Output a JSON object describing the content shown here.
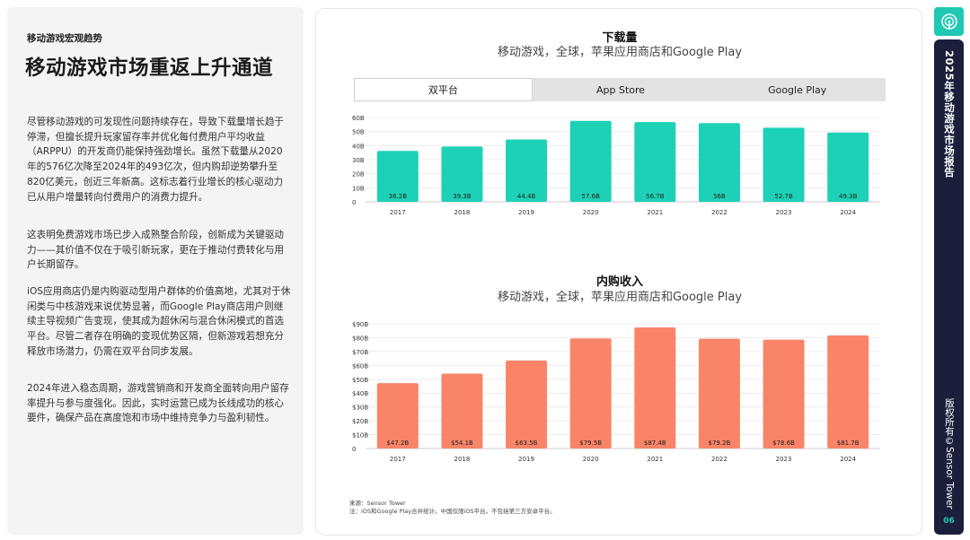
{
  "left": {
    "eyebrow": "移动游戏宏观趋势",
    "headline": "移动游戏市场重返上升通道",
    "paragraphs": [
      "尽管移动游戏的可发现性问题持续存在，导致下载量增长趋于停滞，但擅长提升玩家留存率并优化每付费用户平均收益（ARPPU）的开发商仍能保持强劲增长。虽然下载量从2020年的576亿次降至2024年的493亿次，但内购却逆势攀升至820亿美元，创近三年新高。这标志着行业增长的核心驱动力已从用户增量转向付费用户的消费力提升。",
      "这表明免费游戏市场已步入成熟整合阶段，创新成为关键驱动力——其价值不仅在于吸引新玩家，更在于推动付费转化与用户长期留存。",
      "iOS应用商店仍是内购驱动型用户群体的价值高地，尤其对于休闲类与中核游戏来说优势显著，而Google Play商店用户则继续主导视频广告变现，使其成为超休闲与混合休闲模式的首选平台。尽管二者存在明确的变现优势区隔，但新游戏若想充分释放市场潜力，仍需在双平台同步发展。",
      "2024年进入稳态周期，游戏营销商和开发商全面转向用户留存率提升与参与度强化。因此，实时运营已成为长线成功的核心要件，确保产品在高度饱和市场中维持竞争力与盈利韧性。"
    ]
  },
  "tabs": [
    "双平台",
    "App Store",
    "Google Play"
  ],
  "chart_data": [
    {
      "type": "bar",
      "title": "下载量",
      "subtitle": "移动游戏，全球，苹果应用商店和Google Play",
      "categories": [
        "2017",
        "2018",
        "2019",
        "2020",
        "2021",
        "2022",
        "2023",
        "2024"
      ],
      "values": [
        36.2,
        39.3,
        44.4,
        57.6,
        56.7,
        56,
        52.7,
        49.3
      ],
      "value_labels": [
        "36.2B",
        "39.3B",
        "44.4B",
        "57.6B",
        "56.7B",
        "56B",
        "52.7B",
        "49.3B"
      ],
      "yticks": [
        "0",
        "10B",
        "20B",
        "30B",
        "40B",
        "50B",
        "60B"
      ],
      "ylim": [
        0,
        60
      ],
      "color": "#1dd1b6",
      "grid": true
    },
    {
      "type": "bar",
      "title": "内购收入",
      "subtitle": "移动游戏，全球，苹果应用商店和Google Play",
      "categories": [
        "2017",
        "2018",
        "2019",
        "2020",
        "2021",
        "2022",
        "2023",
        "2024"
      ],
      "values": [
        47.2,
        54.1,
        63.5,
        79.5,
        87.4,
        79.2,
        78.6,
        81.7
      ],
      "value_labels": [
        "$47.2B",
        "$54.1B",
        "$63.5B",
        "$79.5B",
        "$87.4B",
        "$79.2B",
        "$78.6B",
        "$81.7B"
      ],
      "yticks": [
        "0",
        "$10B",
        "$20B",
        "$30B",
        "$40B",
        "$50B",
        "$60B",
        "$70B",
        "$80B",
        "$90B"
      ],
      "ylim": [
        0,
        90
      ],
      "color": "#fa8468",
      "grid": true
    }
  ],
  "source": {
    "line1": "来源：Sensor Tower",
    "line2": "注：iOS和Google Play合并统计。中国仅限iOS平台。不包括第三方安卓平台。"
  },
  "sidebar": {
    "report_title": "2025年移动游戏市场报告",
    "copyright": "版权所有©Sensor Tower",
    "page": "06"
  },
  "colors": {
    "teal": "#1dd1b6",
    "coral": "#fa8468",
    "navy": "#1b1f3b"
  }
}
